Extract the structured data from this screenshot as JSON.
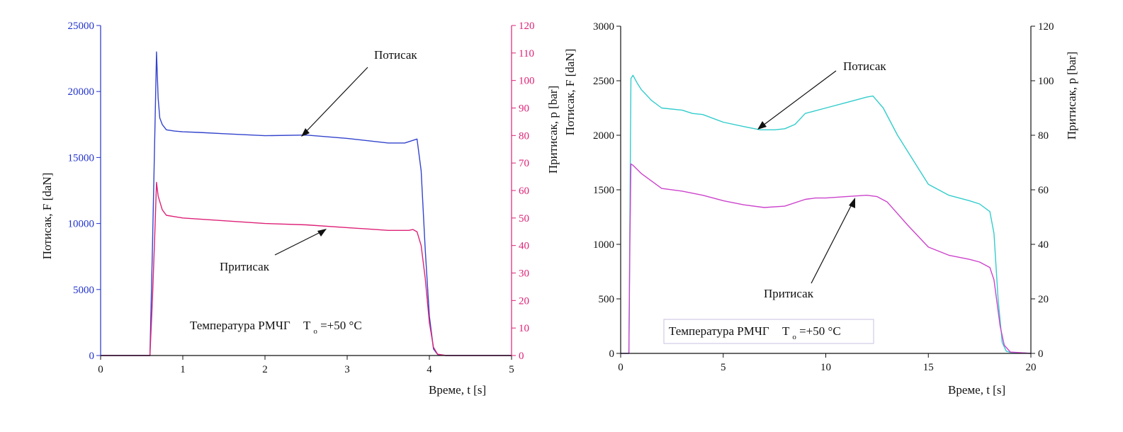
{
  "chart_data": [
    {
      "type": "line",
      "xlabel": "Време,   t [s]",
      "ylabel_left": "Потисак,   F [daN]",
      "ylabel_right": "Притисак,  p [bar]",
      "xlim": [
        0,
        5
      ],
      "ylim_left": [
        0,
        25000
      ],
      "ylim_right": [
        0,
        120
      ],
      "xticks": [
        0,
        1,
        2,
        3,
        4,
        5
      ],
      "yticks_left": [
        0,
        5000,
        10000,
        15000,
        20000,
        25000
      ],
      "yticks_right": [
        0,
        10,
        20,
        30,
        40,
        50,
        60,
        70,
        80,
        90,
        100,
        110,
        120
      ],
      "left_axis_color": "#2233cc",
      "right_axis_color": "#dd2277",
      "grid": false,
      "annotations": {
        "force": "Потисак",
        "pressure": "Притисак",
        "temperature_prefix": "Температура РМЧГ",
        "temperature_symbol": "T",
        "temperature_subscript": "o",
        "temperature_value": "=+50",
        "temperature_unit": "°C"
      },
      "series": [
        {
          "axis": "left",
          "color": "#3344cc",
          "x": [
            0,
            0.6,
            0.63,
            0.66,
            0.68,
            0.7,
            0.72,
            0.75,
            0.8,
            0.9,
            1.0,
            1.2,
            1.5,
            2.0,
            2.5,
            3.0,
            3.5,
            3.7,
            3.8,
            3.85,
            3.9,
            3.95,
            4.0,
            4.05,
            4.1,
            4.2,
            5.0
          ],
          "y": [
            0,
            0,
            8000,
            17000,
            23000,
            19500,
            18000,
            17500,
            17100,
            17000,
            16950,
            16900,
            16800,
            16650,
            16700,
            16450,
            16100,
            16100,
            16300,
            16400,
            14000,
            8000,
            3000,
            500,
            80,
            0,
            0
          ]
        },
        {
          "axis": "right",
          "color": "#dd2277",
          "x": [
            0,
            0.6,
            0.63,
            0.66,
            0.68,
            0.7,
            0.75,
            0.8,
            0.9,
            1.0,
            1.5,
            2.0,
            2.5,
            3.0,
            3.5,
            3.75,
            3.8,
            3.85,
            3.9,
            3.95,
            4.0,
            4.05,
            4.1,
            4.2,
            5.0
          ],
          "y": [
            0,
            0,
            20,
            45,
            63,
            58,
            53,
            51,
            50.5,
            50,
            49,
            48,
            47.5,
            46.5,
            45.5,
            45.5,
            45.8,
            45,
            40,
            28,
            12,
            3,
            0.5,
            0,
            0
          ]
        }
      ]
    },
    {
      "type": "line",
      "xlabel": "Време,   t [s]",
      "ylabel_left": "Потисак,  F [daN]",
      "ylabel_right": "Притисак,  p [bar]",
      "xlim": [
        0,
        20
      ],
      "ylim_left": [
        0,
        3000
      ],
      "ylim_right": [
        0,
        120
      ],
      "xticks": [
        0,
        5,
        10,
        15,
        20
      ],
      "yticks_left": [
        0,
        500,
        1000,
        1500,
        2000,
        2500,
        3000
      ],
      "yticks_right": [
        0,
        20,
        40,
        60,
        80,
        100,
        120
      ],
      "left_axis_color": "#111111",
      "right_axis_color": "#111111",
      "grid": false,
      "annotations": {
        "force": "Потисак",
        "pressure": "Притисак",
        "temperature_prefix": "Температура РМЧГ",
        "temperature_symbol": "T",
        "temperature_subscript": "o",
        "temperature_value": "=+50",
        "temperature_unit": "°C"
      },
      "series": [
        {
          "axis": "left",
          "color": "#33cccc",
          "x": [
            0,
            0.4,
            0.45,
            0.5,
            0.6,
            0.8,
            1.0,
            1.5,
            2.0,
            3.0,
            3.5,
            4.0,
            5.0,
            6.0,
            6.8,
            7.5,
            8.0,
            8.5,
            9.0,
            10.0,
            11.0,
            12.0,
            12.3,
            12.8,
            13.5,
            14.0,
            14.5,
            15.0,
            16.0,
            17.0,
            17.5,
            18.0,
            18.2,
            18.4,
            18.6,
            18.8,
            19.0,
            20.0
          ],
          "y": [
            0,
            0,
            1200,
            2520,
            2550,
            2480,
            2420,
            2320,
            2250,
            2230,
            2200,
            2190,
            2120,
            2080,
            2050,
            2050,
            2060,
            2100,
            2200,
            2250,
            2300,
            2350,
            2360,
            2250,
            2000,
            1850,
            1700,
            1550,
            1450,
            1400,
            1370,
            1300,
            1100,
            500,
            100,
            20,
            10,
            0
          ]
        },
        {
          "axis": "right",
          "color": "#cc44cc",
          "x": [
            0,
            0.4,
            0.45,
            0.5,
            0.6,
            0.8,
            1.0,
            2.0,
            3.0,
            4.0,
            5.0,
            6.0,
            7.0,
            8.0,
            9.0,
            9.5,
            10.0,
            11.0,
            12.0,
            12.5,
            13.0,
            14.0,
            15.0,
            16.0,
            17.0,
            17.5,
            18.0,
            18.2,
            18.5,
            18.7,
            19.0,
            20.0
          ],
          "y": [
            0,
            0,
            40,
            69.5,
            69,
            67.5,
            66,
            60.5,
            59.5,
            58,
            56,
            54.5,
            53.5,
            54,
            56.5,
            57,
            57,
            57.5,
            58,
            57.5,
            55.5,
            47,
            39,
            36,
            34.5,
            33.5,
            31.5,
            27,
            10,
            3,
            0.5,
            0
          ]
        }
      ]
    }
  ]
}
